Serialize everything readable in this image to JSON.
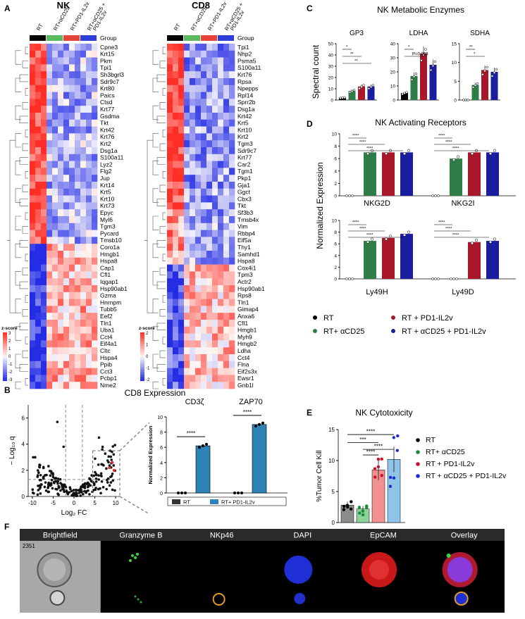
{
  "panels": [
    "A",
    "B",
    "C",
    "D",
    "E",
    "F"
  ],
  "heatmap": {
    "group_label": "Group",
    "conditions": [
      "RT",
      "RT+αCD25",
      "RT+PD1-IL2v",
      "RT+αCD25 +\nPD1-IL2v"
    ],
    "condition_colors": [
      "#000000",
      "#5cb85c",
      "#e8433a",
      "#2f3ed8"
    ],
    "scale": {
      "title": "z-score",
      "nk_ticks": [
        "3",
        "2",
        "1",
        "0",
        "-1",
        "-2",
        "-3"
      ],
      "cd8_ticks": [
        "2",
        "1",
        "0",
        "-1",
        "-2"
      ]
    },
    "nk": {
      "title": "NK",
      "genes": [
        "Cpne3",
        "Krt15",
        "Pkm",
        "Tpi1",
        "Sh3bgrl3",
        "Sdr9c7",
        "Krt80",
        "Paics",
        "Ctsd",
        "Krt77",
        "Gsdma",
        "Tkt",
        "Krt42",
        "Krt76",
        "Krt2",
        "Dsg1a",
        "S100a11",
        "Lyz2",
        "Flg2",
        "Jup",
        "Krt14",
        "Krt5",
        "Krt10",
        "Krt73",
        "Epyc",
        "Myl6",
        "Tgm3",
        "Pycard",
        "Tmsb10",
        "Coro1a",
        "Hmgb1",
        "Hspa8",
        "Cap1",
        "Cfl1",
        "Iqgap1",
        "Hsp90ab1",
        "Gzma",
        "Hnrnpm",
        "Tubb5",
        "Eef2",
        "Tln1",
        "Uba1",
        "Cct4",
        "Eif4a1",
        "Cltc",
        "Hspa4",
        "Ppib",
        "Cct3",
        "Pcbp1",
        "Nme2"
      ]
    },
    "cd8": {
      "title": "CD8",
      "genes": [
        "Tpi1",
        "Nhp2",
        "Psma5",
        "S100a11",
        "Krt76",
        "Rpsa",
        "Npepps",
        "Rpl14",
        "Sprr2b",
        "Dsg1a",
        "Krt42",
        "Krt5",
        "Krt10",
        "Krt2",
        "Tgm3",
        "Sdr9c7",
        "Krt77",
        "Car2",
        "Tgm1",
        "Pkp1",
        "Gja1",
        "Ggct",
        "Cbx3",
        "Tkt",
        "Sf3b3",
        "Tmsb4x",
        "Vim",
        "Rbbp4",
        "Eif5a",
        "Thy1",
        "Samhd1",
        "Hspa8",
        "Cox4i1",
        "Tpm3",
        "Actr2",
        "Hsp90ab1",
        "Rps8",
        "Tln1",
        "Gimap4",
        "Anxa6",
        "Cfl1",
        "Hmgb1",
        "Myh9",
        "Hmgb2",
        "Ldha",
        "Cct4",
        "Flna",
        "Eif2s3x",
        "Ewsr1",
        "Gnb1l"
      ]
    }
  },
  "panel_b": {
    "title": "CD8 Expression",
    "volcano": {
      "xlabel": "Log₂ FC",
      "ylabel": "− Log₁₀ q",
      "xticks": [
        -10,
        -5,
        0,
        5,
        10
      ],
      "yticks": [
        0,
        2,
        4,
        6
      ]
    },
    "bars": {
      "ylabel": "Normalized Expression",
      "yticks": [
        0,
        2,
        4,
        6,
        8,
        10
      ],
      "groups": [
        "CD3ζ",
        "ZAP70"
      ],
      "sig": [
        "****",
        "****"
      ],
      "legend": [
        "RT",
        "RT+ PD1-IL2v"
      ],
      "colors": [
        "#333333",
        "#2e84b8"
      ]
    }
  },
  "chart_data": [
    {
      "type": "bar",
      "title": "NK Metabolic Enzymes",
      "ylabel": "Spectral count",
      "subplots": [
        {
          "name": "GP3",
          "yticks": [
            0,
            10,
            20,
            30,
            40,
            50
          ],
          "values": [
            2,
            8,
            12,
            12
          ],
          "sig": [
            "*",
            "**",
            "**"
          ]
        },
        {
          "name": "LDHA",
          "yticks": [
            0,
            10,
            20,
            30,
            40
          ],
          "values": [
            5,
            17,
            33,
            25
          ],
          "sig": [
            "*",
            "P=0.059"
          ]
        },
        {
          "name": "SDHA",
          "yticks": [
            0,
            5,
            10,
            15
          ],
          "values": [
            0,
            4,
            8,
            7.5
          ],
          "sig": [
            "**",
            "*"
          ]
        }
      ]
    },
    {
      "type": "bar",
      "title": "NK Activating Receptors",
      "ylabel": "Normalized Expression",
      "yticks": [
        0,
        2,
        4,
        6,
        8,
        10
      ],
      "subplots": [
        {
          "name": "NKG2D",
          "values": [
            0,
            7,
            7,
            7
          ]
        },
        {
          "name": "NKG2I",
          "values": [
            0,
            6,
            7,
            7
          ]
        },
        {
          "name": "Ly49H",
          "values": [
            0,
            6.5,
            7,
            7.7
          ]
        },
        {
          "name": "Ly49D",
          "values": [
            0,
            0,
            6.3,
            6.5
          ]
        }
      ],
      "sig": "****"
    },
    {
      "type": "bar",
      "title": "NK Cytotoxicity",
      "ylabel": "%Tumor Cell Kill",
      "yticks": [
        0,
        5,
        10,
        15
      ],
      "categories": [
        "RT",
        "RT+ αCD25",
        "RT + PD1-IL2v",
        "RT + αCD25 + PD1-IL2v"
      ],
      "values": [
        2.8,
        2.2,
        8.5,
        10.2
      ],
      "sig": [
        "****",
        "***",
        "****",
        "****"
      ]
    }
  ],
  "legend_cd": [
    "RT",
    "RT+ αCD25",
    "RT + PD1-IL2v",
    "RT + αCD25 + PD1-IL2v"
  ],
  "group_colors": [
    "#000000",
    "#2e7d46",
    "#a8182a",
    "#1a1e9e"
  ],
  "e_colors": [
    "#8c8c8c",
    "#8fd19a",
    "#f29191",
    "#8fc3e8"
  ],
  "e_dot_colors": [
    "#000000",
    "#1a8a3a",
    "#c8102e",
    "#1e2bd1"
  ],
  "imaging": {
    "cell_id": "2351",
    "channels": [
      "Brightfield",
      "Granzyme B",
      "NKp46",
      "DAPI",
      "EpCAM",
      "Overlay"
    ]
  }
}
